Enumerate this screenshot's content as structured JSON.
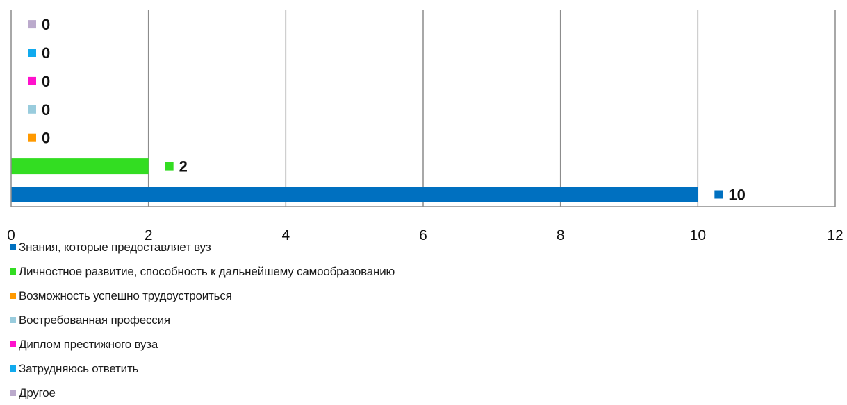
{
  "chart_data": {
    "type": "bar",
    "orientation": "horizontal",
    "xlim": [
      0,
      12
    ],
    "x_ticks": [
      "0",
      "2",
      "4",
      "6",
      "8",
      "10",
      "12"
    ],
    "grid": true,
    "legend_placement": "bottom",
    "series": [
      {
        "name": "Знания, которые предоставляет вуз",
        "value": 10,
        "label": "10",
        "color": "#0070C0"
      },
      {
        "name": "Личностное развитие, способность к дальнейшему самообразованию",
        "value": 2,
        "label": "2",
        "color": "#33DD22"
      },
      {
        "name": "Возможность успешно трудоустроиться",
        "value": 0,
        "label": "0",
        "color": "#FF9900"
      },
      {
        "name": "Востребованная профессия",
        "value": 0,
        "label": "0",
        "color": "#99CCDD"
      },
      {
        "name": "Диплом престижного вуза",
        "value": 0,
        "label": "0",
        "color": "#FF11CC"
      },
      {
        "name": "Затрудняюсь ответить",
        "value": 0,
        "label": "0",
        "color": "#11AAEE"
      },
      {
        "name": "Другое",
        "value": 0,
        "label": "0",
        "color": "#BBAACC"
      }
    ]
  }
}
